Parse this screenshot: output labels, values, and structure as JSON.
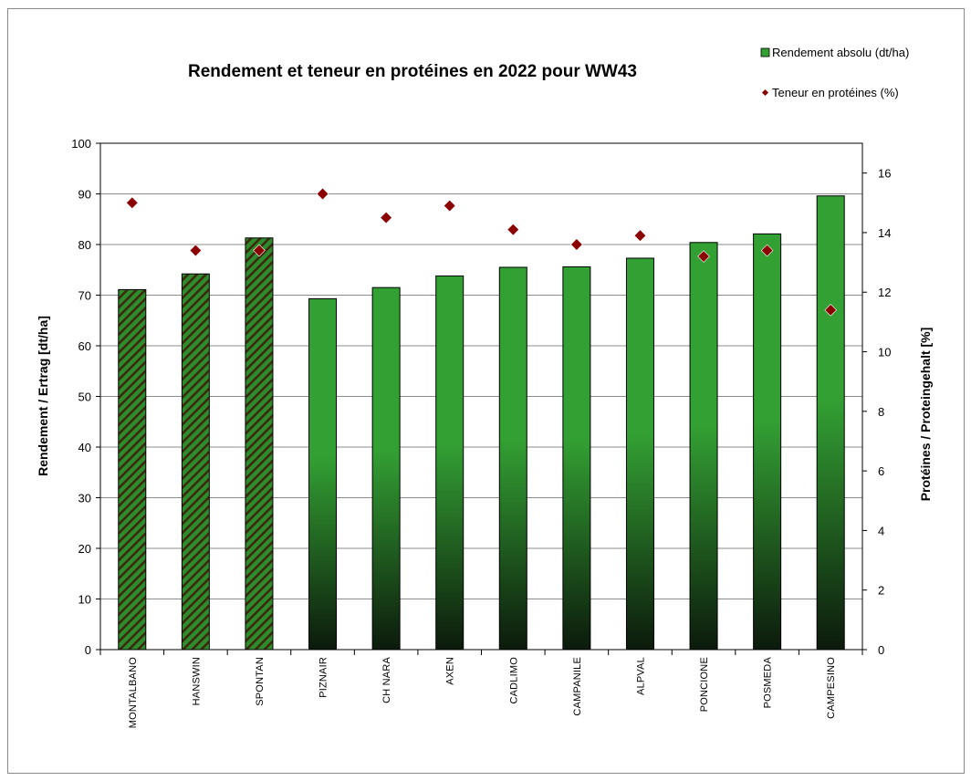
{
  "chart_data": {
    "type": "bar",
    "title": "Rendement et teneur en protéines en 2022 pour WW43",
    "ylabel": "Rendement / Ertrag [dt/ha]",
    "y2label": "Protéines / Proteingehalt [%]",
    "ylim": [
      0,
      100
    ],
    "y2lim": [
      0,
      17
    ],
    "yticks": [
      "0",
      "10",
      "20",
      "30",
      "40",
      "50",
      "60",
      "70",
      "80",
      "90",
      "100"
    ],
    "y2ticks": [
      "0",
      "2",
      "4",
      "6",
      "8",
      "10",
      "12",
      "14",
      "16"
    ],
    "grid": true,
    "legend_position": "top-right",
    "categories": [
      "MONTALBANO",
      "HANSWIN",
      "SPONTAN",
      "PIZNAIR",
      "CH NARA",
      "AXEN",
      "CADLIMO",
      "CAMPANILE",
      "ALPVAL",
      "PONCIONE",
      "POSMEDA",
      "CAMPESINO"
    ],
    "series": [
      {
        "name": "Rendement absolu (dt/ha)",
        "type": "bar",
        "axis": "left",
        "values": [
          71.1,
          74.2,
          81.3,
          69.3,
          71.5,
          73.8,
          75.5,
          75.6,
          77.3,
          80.4,
          82.1,
          89.6
        ],
        "hatched": [
          true,
          true,
          true,
          false,
          false,
          false,
          false,
          false,
          false,
          false,
          false,
          false
        ]
      },
      {
        "name": "Teneur en protéines (%)",
        "type": "scatter",
        "axis": "right",
        "values": [
          15.0,
          13.4,
          13.4,
          15.3,
          14.5,
          14.9,
          14.1,
          13.6,
          13.9,
          13.2,
          13.4,
          11.4
        ]
      }
    ],
    "colors": {
      "bar_top": "#33a033",
      "bar_bottom": "#0c1a0c",
      "hatch_green": "#2e8b2e",
      "hatch_dark": "#3a2a0a",
      "marker": "#8b0000"
    }
  }
}
